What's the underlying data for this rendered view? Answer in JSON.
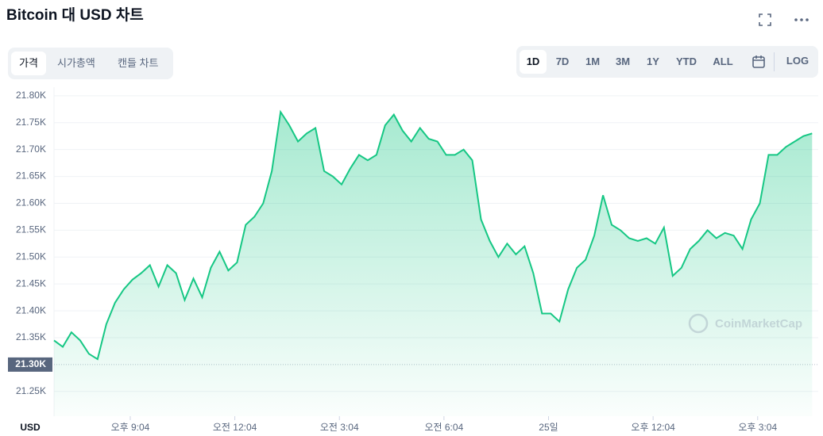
{
  "ui": {
    "title": "Bitcoin 대 USD 차트",
    "tabs": [
      "가격",
      "시가총액",
      "캔들 차트"
    ],
    "ranges": [
      "1D",
      "7D",
      "1M",
      "3M",
      "1Y",
      "YTD",
      "ALL"
    ],
    "log": "LOG",
    "watermark": "CoinMarketCap"
  },
  "chart_data": {
    "type": "line",
    "y_label": "USD",
    "grid": true,
    "baseline": 21300,
    "x": [
      0,
      1,
      2,
      3,
      4,
      5,
      6,
      7,
      8,
      9,
      10,
      11,
      12,
      13,
      14,
      15,
      16,
      17,
      18,
      19,
      20,
      21,
      22,
      23,
      24,
      25,
      26,
      27,
      28,
      29,
      30,
      31,
      32,
      33,
      34,
      35,
      36,
      37,
      38,
      39,
      40,
      41,
      42,
      43,
      44,
      45,
      46,
      47,
      48,
      49,
      50,
      51,
      52,
      53,
      54,
      55,
      56,
      57,
      58,
      59,
      60,
      61,
      62,
      63,
      64,
      65,
      66,
      67,
      68,
      69,
      70,
      71,
      72,
      73,
      74,
      75,
      76,
      77,
      78,
      79,
      80,
      81,
      82,
      83,
      84,
      85,
      86,
      87
    ],
    "series": [
      {
        "name": "Bitcoin",
        "color": "#16c784",
        "values": [
          21345,
          21333,
          21360,
          21345,
          21320,
          21310,
          21375,
          21415,
          21440,
          21458,
          21470,
          21485,
          21445,
          21485,
          21470,
          21420,
          21460,
          21425,
          21480,
          21510,
          21475,
          21490,
          21560,
          21575,
          21600,
          21660,
          21770,
          21745,
          21715,
          21730,
          21740,
          21660,
          21650,
          21635,
          21665,
          21690,
          21680,
          21690,
          21745,
          21765,
          21735,
          21715,
          21740,
          21720,
          21715,
          21690,
          21690,
          21700,
          21680,
          21570,
          21530,
          21500,
          21525,
          21505,
          21520,
          21470,
          21395,
          21395,
          21380,
          21440,
          21480,
          21495,
          21540,
          21615,
          21560,
          21550,
          21535,
          21530,
          21535,
          21525,
          21555,
          21465,
          21480,
          21515,
          21530,
          21550,
          21535,
          21545,
          21540,
          21515,
          21570,
          21600,
          21690,
          21690,
          21705,
          21715,
          21725,
          21730
        ]
      }
    ],
    "xlim": [
      0,
      87.7
    ],
    "xticks": [
      {
        "value": 8.75,
        "label": "오후 9:04"
      },
      {
        "value": 20.75,
        "label": "오전 12:04"
      },
      {
        "value": 32.75,
        "label": "오전 3:04"
      },
      {
        "value": 44.75,
        "label": "오전 6:04"
      },
      {
        "value": 56.75,
        "label": "25일"
      },
      {
        "value": 68.75,
        "label": "오후 12:04"
      },
      {
        "value": 80.75,
        "label": "오후 3:04"
      }
    ],
    "ylim": [
      21204,
      21816
    ],
    "yticks": [
      {
        "value": 21250,
        "label": "21.25K"
      },
      {
        "value": 21300,
        "label": "21.30K"
      },
      {
        "value": 21350,
        "label": "21.35K"
      },
      {
        "value": 21400,
        "label": "21.40K"
      },
      {
        "value": 21450,
        "label": "21.45K"
      },
      {
        "value": 21500,
        "label": "21.50K"
      },
      {
        "value": 21550,
        "label": "21.55K"
      },
      {
        "value": 21600,
        "label": "21.60K"
      },
      {
        "value": 21650,
        "label": "21.65K"
      },
      {
        "value": 21700,
        "label": "21.70K"
      },
      {
        "value": 21750,
        "label": "21.75K"
      },
      {
        "value": 21800,
        "label": "21.80K"
      }
    ]
  }
}
